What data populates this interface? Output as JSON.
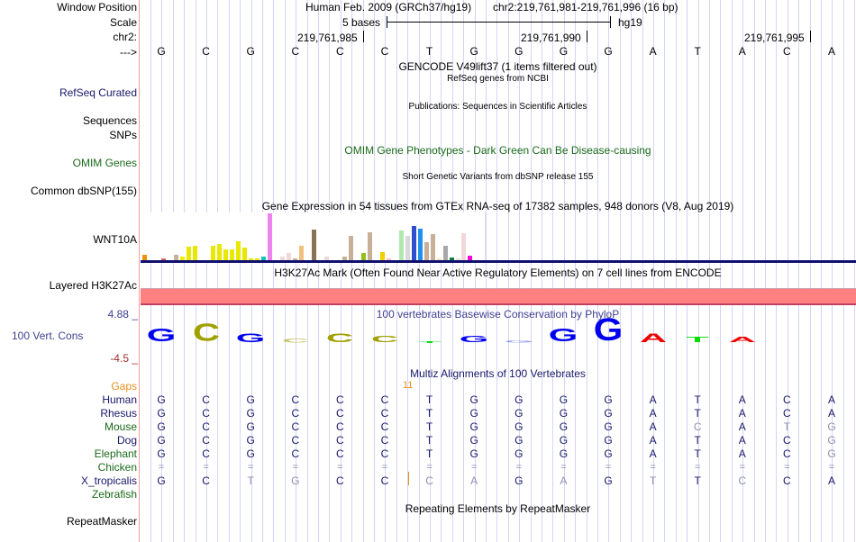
{
  "header": {
    "window_position_label": "Window Position",
    "scale_label": "Scale",
    "chr_label": "chr2:",
    "strand_label": "--->",
    "assembly": "Human Feb. 2009 (GRCh37/hg19)",
    "position": "chr2:219,761,981-219,761,996 (16 bp)",
    "scale_text": "5 bases",
    "scale_db": "hg19",
    "ticks": [
      "219,761,985",
      "219,761,990",
      "219,761,995"
    ]
  },
  "sequence": [
    "G",
    "C",
    "G",
    "C",
    "C",
    "C",
    "T",
    "G",
    "G",
    "G",
    "G",
    "A",
    "T",
    "A",
    "C",
    "A"
  ],
  "tracks": {
    "gencode_title": "GENCODE V49lift37 (1 items filtered out)",
    "refseq_subtitle": "RefSeq genes from NCBI",
    "refseq_label": "RefSeq Curated",
    "publications_title": "Publications: Sequences in Scientific Articles",
    "sequences_label": "Sequences",
    "snps_label": "SNPs",
    "omim_title": "OMIM Gene Phenotypes - Dark Green Can Be Disease-causing",
    "omim_label": "OMIM Genes",
    "dbsnp_title": "Short Genetic Variants from dbSNP release 155",
    "dbsnp_label": "Common dbSNP(155)",
    "gtex_title": "Gene Expression in 54 tissues from GTEx RNA-seq of 17382 samples, 948 donors (V8, Aug 2019)",
    "gtex_label": "WNT10A",
    "h3k27ac_title": "H3K27Ac Mark (Often Found Near Active Regulatory Elements) on 7 cell lines from ENCODE",
    "h3k27ac_label": "Layered H3K27Ac",
    "cons_title": "100 vertebrates Basewise Conservation by PhyloP",
    "cons_label": "100 Vert. Cons",
    "cons_max": "4.88 _",
    "cons_min": "-4.5 _",
    "multiz_title": "Multiz Alignments of 100 Vertebrates",
    "gaps_label": "Gaps",
    "gaps_value": "11",
    "repeat_title": "Repeating Elements by RepeatMasker",
    "repeat_label": "RepeatMasker"
  },
  "gtex_bars": [
    {
      "color": "#f0900a",
      "v": 0.12
    },
    {
      "color": "#ffffff",
      "v": 0
    },
    {
      "color": "#ffffff",
      "v": 0
    },
    {
      "color": "#e86060",
      "v": 0.04
    },
    {
      "color": "#ffffff",
      "v": 0
    },
    {
      "color": "#c8b098",
      "v": 0.12
    },
    {
      "color": "#f0f000",
      "v": 0.08
    },
    {
      "color": "#e8e800",
      "v": 0.28
    },
    {
      "color": "#e8e800",
      "v": 0.31
    },
    {
      "color": "#ffffff",
      "v": 0
    },
    {
      "color": "#ffffff",
      "v": 0
    },
    {
      "color": "#e8e800",
      "v": 0.31
    },
    {
      "color": "#e8e800",
      "v": 0.35
    },
    {
      "color": "#e8e800",
      "v": 0.24
    },
    {
      "color": "#e8e800",
      "v": 0.24
    },
    {
      "color": "#e8e800",
      "v": 0.4
    },
    {
      "color": "#e8e800",
      "v": 0.27
    },
    {
      "color": "#e8e800",
      "v": 0.04
    },
    {
      "color": "#e8e800",
      "v": 0.04
    },
    {
      "color": "#10c0c0",
      "v": 0.08
    },
    {
      "color": "#ee82ee",
      "v": 1.0
    },
    {
      "color": "#ffffff",
      "v": 0
    },
    {
      "color": "#f0d8d8",
      "v": 0.08
    },
    {
      "color": "#f0d8d8",
      "v": 0.15
    },
    {
      "color": "#c8b098",
      "v": 0.04
    },
    {
      "color": "#f0c080",
      "v": 0.31
    },
    {
      "color": "#ffffff",
      "v": 0
    },
    {
      "color": "#8b7355",
      "v": 0.66
    },
    {
      "color": "#ffffff",
      "v": 0
    },
    {
      "color": "#f0d8d8",
      "v": 0.08
    },
    {
      "color": "#ffffff",
      "v": 0
    },
    {
      "color": "#ffffff",
      "v": 0
    },
    {
      "color": "#c8b098",
      "v": 0.08
    },
    {
      "color": "#c8b098",
      "v": 0.52
    },
    {
      "color": "#ffffff",
      "v": 0
    },
    {
      "color": "#90c020",
      "v": 0.15
    },
    {
      "color": "#c8b098",
      "v": 0.6
    },
    {
      "color": "#ffffff",
      "v": 0
    },
    {
      "color": "#f0d000",
      "v": 0.18
    },
    {
      "color": "#ffc0d0",
      "v": 0.04
    },
    {
      "color": "#ffffff",
      "v": 0
    },
    {
      "color": "#b0e8b0",
      "v": 0.64
    },
    {
      "color": "#d8d8d8",
      "v": 0.52
    },
    {
      "color": "#3050d0",
      "v": 0.74
    },
    {
      "color": "#2090f0",
      "v": 0.68
    },
    {
      "color": "#c8b098",
      "v": 0.38
    },
    {
      "color": "#c8b098",
      "v": 0.55
    },
    {
      "color": "#f8e0c0",
      "v": 0.04
    },
    {
      "color": "#a8a8a8",
      "v": 0.3
    },
    {
      "color": "#108040",
      "v": 0.06
    },
    {
      "color": "#f0e0e0",
      "v": 0.04
    },
    {
      "color": "#f0d8d8",
      "v": 0.57
    },
    {
      "color": "#ff00e0",
      "v": 0.1
    }
  ],
  "cons_logo": [
    {
      "b": "G",
      "color": "#0000ee",
      "h": 0.55
    },
    {
      "b": "C",
      "color": "#a0a000",
      "h": 0.75
    },
    {
      "b": "G",
      "color": "#0000ee",
      "h": 0.38
    },
    {
      "b": "C",
      "color": "#a0a000",
      "h": 0.15,
      "faint": true
    },
    {
      "b": "C",
      "color": "#a0a000",
      "h": 0.35
    },
    {
      "b": "C",
      "color": "#a0a000",
      "h": 0.25
    },
    {
      "b": "T",
      "color": "#00dd00",
      "h": 0.04
    },
    {
      "b": "G",
      "color": "#0000ee",
      "h": 0.28
    },
    {
      "b": "G",
      "color": "#4050dd",
      "h": 0.1,
      "faint": true
    },
    {
      "b": "G",
      "color": "#0000ee",
      "h": 0.55
    },
    {
      "b": "G",
      "color": "#0000ee",
      "h": 0.95
    },
    {
      "b": "A",
      "color": "#ee0000",
      "h": 0.35
    },
    {
      "b": "T",
      "color": "#00dd00",
      "h": 0.22
    },
    {
      "b": "A",
      "color": "#ee0000",
      "h": 0.22
    },
    {
      "b": "C",
      "color": "#a0a000",
      "h": 0
    },
    {
      "b": "A",
      "color": "#ee0000",
      "h": 0
    }
  ],
  "alignment": [
    {
      "species": "Human",
      "group": "navy",
      "bases": [
        "G",
        "C",
        "G",
        "C",
        "C",
        "C",
        "T",
        "G",
        "G",
        "G",
        "G",
        "A",
        "T",
        "A",
        "C",
        "A"
      ],
      "faint": []
    },
    {
      "species": "Rhesus",
      "group": "navy",
      "bases": [
        "G",
        "C",
        "G",
        "C",
        "C",
        "C",
        "T",
        "G",
        "G",
        "G",
        "G",
        "A",
        "T",
        "A",
        "C",
        "A"
      ],
      "faint": []
    },
    {
      "species": "Mouse",
      "group": "green",
      "bases": [
        "G",
        "C",
        "G",
        "C",
        "C",
        "C",
        "T",
        "G",
        "G",
        "G",
        "G",
        "A",
        "C",
        "A",
        "T",
        "G"
      ],
      "faint": [
        12,
        14,
        15
      ]
    },
    {
      "species": "Dog",
      "group": "navy",
      "bases": [
        "G",
        "C",
        "G",
        "C",
        "C",
        "C",
        "T",
        "G",
        "G",
        "G",
        "G",
        "A",
        "T",
        "A",
        "C",
        "G"
      ],
      "faint": [
        15
      ]
    },
    {
      "species": "Elephant",
      "group": "green",
      "bases": [
        "G",
        "C",
        "G",
        "C",
        "C",
        "C",
        "T",
        "G",
        "G",
        "G",
        "G",
        "A",
        "T",
        "A",
        "C",
        "G"
      ],
      "faint": [
        15
      ]
    },
    {
      "species": "Chicken",
      "group": "green",
      "bases": [
        "=",
        "=",
        "=",
        "=",
        "=",
        "=",
        "=",
        "=",
        "=",
        "=",
        "=",
        "=",
        "=",
        "=",
        "=",
        "="
      ],
      "faint": [
        0,
        1,
        2,
        3,
        4,
        5,
        6,
        7,
        8,
        9,
        10,
        11,
        12,
        13,
        14,
        15
      ]
    },
    {
      "species": "X_tropicalis",
      "group": "navy",
      "bases": [
        "G",
        "C",
        "T",
        "G",
        "C",
        "C",
        "C",
        "A",
        "G",
        "A",
        "G",
        "T",
        "T",
        "C",
        "C",
        "A"
      ],
      "faint": [
        2,
        3,
        6,
        7,
        9,
        11,
        13
      ]
    },
    {
      "species": "Zebrafish",
      "group": "green",
      "bases": [],
      "faint": []
    }
  ],
  "colors": {
    "navy": "#18186a",
    "green": "#1a6a1a",
    "gaps_orange": "#e89020",
    "h3k27ac_fill": "#ff8080",
    "h3k27ac_edge": "#c04060",
    "gtex_baseline": "#101070",
    "cons_axis_max": "#404090",
    "cons_axis_min": "#a03030"
  }
}
